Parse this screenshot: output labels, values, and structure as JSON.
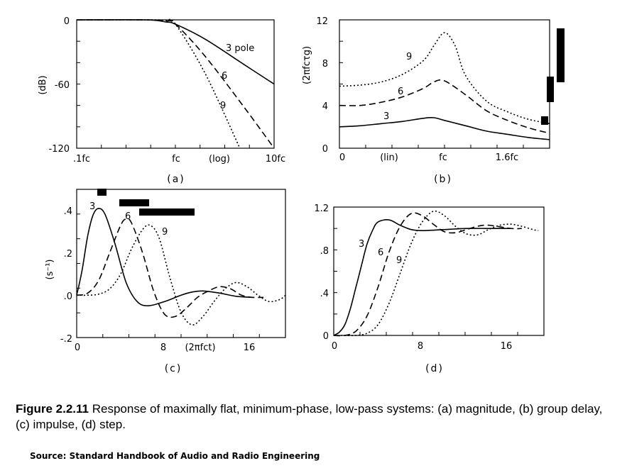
{
  "caption": {
    "number": "Figure 2.2.11",
    "text": " Response of maximally flat, minimum-phase, low-pass systems: (a) magnitude, (b) group delay, (c) impulse, (d) step."
  },
  "source": "Source: Standard Handbook of Audio and Radio Engineering",
  "chart_data": [
    {
      "type": "line",
      "panel_label": "(a)",
      "ylabel": "(dB)",
      "xscale": "log",
      "xlim": [
        0.1,
        10
      ],
      "ylim": [
        -120,
        0
      ],
      "x_tick_labels": [
        ".1fc",
        "fc",
        "(log)",
        "10fc"
      ],
      "y_tick_labels": [
        "0",
        "-60",
        "-120"
      ],
      "series": [
        {
          "name": "3 pole",
          "style": "solid",
          "x": [
            0.1,
            0.5,
            0.8,
            1.0,
            2.0,
            5.0,
            10.0
          ],
          "y": [
            0,
            0,
            -2,
            -4,
            -18,
            -42,
            -60
          ]
        },
        {
          "name": "6",
          "style": "dashed",
          "x": [
            0.1,
            0.5,
            0.8,
            1.0,
            2.0,
            5.0,
            10.0
          ],
          "y": [
            0,
            0,
            -1,
            -4,
            -34,
            -82,
            -120
          ]
        },
        {
          "name": "9",
          "style": "dotted",
          "x": [
            0.1,
            0.5,
            0.8,
            1.0,
            2.0,
            4.5
          ],
          "y": [
            0,
            0,
            -0.5,
            -4,
            -50,
            -120
          ]
        }
      ]
    },
    {
      "type": "line",
      "panel_label": "(b)",
      "ylabel": "(2πfcτg)",
      "xlim": [
        0,
        2
      ],
      "ylim": [
        0,
        12
      ],
      "x_tick_labels": [
        "0",
        "(lin)",
        "fc",
        "1.6fc"
      ],
      "y_tick_labels": [
        "12",
        "8",
        "4",
        "0"
      ],
      "series": [
        {
          "name": "3",
          "style": "solid",
          "x": [
            0,
            0.2,
            0.4,
            0.6,
            0.8,
            0.9,
            1.0,
            1.2,
            1.4,
            1.6,
            1.8,
            2.0
          ],
          "y": [
            2.0,
            2.1,
            2.3,
            2.5,
            2.8,
            2.85,
            2.6,
            2.1,
            1.6,
            1.3,
            1.0,
            0.8
          ]
        },
        {
          "name": "6",
          "style": "dashed",
          "x": [
            0,
            0.2,
            0.4,
            0.6,
            0.8,
            0.9,
            1.0,
            1.2,
            1.4,
            1.6,
            1.8,
            2.0
          ],
          "y": [
            4.0,
            4.0,
            4.3,
            4.8,
            5.6,
            6.2,
            6.3,
            5.0,
            3.5,
            2.6,
            1.9,
            1.4
          ]
        },
        {
          "name": "9",
          "style": "dotted",
          "x": [
            0,
            0.2,
            0.4,
            0.6,
            0.8,
            0.9,
            1.0,
            1.1,
            1.2,
            1.4,
            1.6,
            1.8,
            2.0
          ],
          "y": [
            5.8,
            5.9,
            6.2,
            6.9,
            8.2,
            9.6,
            10.8,
            9.6,
            6.8,
            4.4,
            3.4,
            2.7,
            2.3
          ]
        }
      ]
    },
    {
      "type": "line",
      "panel_label": "(c)",
      "ylabel": "(s⁻¹)",
      "xlim": [
        0,
        19
      ],
      "ylim": [
        -0.2,
        0.5
      ],
      "x_tick_labels": [
        "0",
        "8",
        "(2πfct)",
        "16"
      ],
      "y_tick_labels": [
        ".4",
        ".2",
        ".0",
        "-.2"
      ],
      "series": [
        {
          "name": "3",
          "style": "solid",
          "x": [
            0,
            0.5,
            1.0,
            1.5,
            2.0,
            2.6,
            3.5,
            4.5,
            5.5,
            6.5,
            8.0,
            9.5,
            10.5,
            11.5,
            13.0,
            14.5,
            16.0
          ],
          "y": [
            0,
            0.12,
            0.28,
            0.38,
            0.41,
            0.38,
            0.24,
            0.06,
            -0.03,
            -0.05,
            -0.03,
            0.0,
            0.015,
            0.02,
            0.01,
            -0.005,
            -0.01
          ]
        },
        {
          "name": "6",
          "style": "dashed",
          "x": [
            0,
            1.0,
            2.0,
            3.0,
            4.0,
            4.5,
            5.0,
            6.0,
            7.0,
            8.0,
            9.0,
            10.0,
            11.0,
            12.0,
            13.0,
            14.0,
            15.0,
            16.0,
            17.0
          ],
          "y": [
            0,
            0.01,
            0.07,
            0.2,
            0.33,
            0.36,
            0.34,
            0.2,
            0.02,
            -0.09,
            -0.1,
            -0.06,
            -0.01,
            0.02,
            0.04,
            0.03,
            0.0,
            -0.01,
            -0.01
          ]
        },
        {
          "name": "9",
          "style": "dotted",
          "x": [
            0,
            1.0,
            2.0,
            3.0,
            4.0,
            5.0,
            6.0,
            6.7,
            7.5,
            8.5,
            9.5,
            10.5,
            11.5,
            12.5,
            13.5,
            14.5,
            15.5,
            16.5,
            17.5,
            18.5,
            19.0
          ],
          "y": [
            0,
            0.0,
            0.005,
            0.03,
            0.1,
            0.22,
            0.31,
            0.33,
            0.27,
            0.08,
            -0.08,
            -0.14,
            -0.1,
            -0.03,
            0.03,
            0.06,
            0.04,
            0.0,
            -0.03,
            -0.02,
            0.0
          ]
        }
      ]
    },
    {
      "type": "line",
      "panel_label": "(d)",
      "xlim": [
        0,
        19
      ],
      "ylim": [
        0,
        1.2
      ],
      "x_tick_labels": [
        "0",
        "8",
        "16"
      ],
      "y_tick_labels": [
        "1.2",
        ".8",
        ".4",
        "0"
      ],
      "series": [
        {
          "name": "3",
          "style": "solid",
          "x": [
            0,
            0.5,
            1.0,
            1.5,
            2.0,
            2.5,
            3.0,
            3.5,
            4.0,
            5.0,
            6.0,
            7.0,
            8.0,
            10.0,
            12.0,
            14.0,
            16.0
          ],
          "y": [
            0,
            0.03,
            0.1,
            0.25,
            0.45,
            0.65,
            0.85,
            0.98,
            1.06,
            1.08,
            1.03,
            0.99,
            0.98,
            0.99,
            1.0,
            1.0,
            1.0
          ]
        },
        {
          "name": "6",
          "style": "dashed",
          "x": [
            0,
            1.0,
            2.0,
            3.0,
            4.0,
            5.0,
            6.0,
            7.0,
            8.0,
            9.0,
            10.0,
            11.0,
            12.0,
            13.0,
            14.0,
            16.0,
            17.0
          ],
          "y": [
            0,
            0.0,
            0.04,
            0.18,
            0.45,
            0.78,
            1.02,
            1.14,
            1.12,
            1.04,
            0.97,
            0.96,
            0.99,
            1.02,
            1.03,
            1.0,
            1.0
          ]
        },
        {
          "name": "9",
          "style": "dotted",
          "x": [
            0,
            1.0,
            2.0,
            3.0,
            4.0,
            5.0,
            6.0,
            7.0,
            8.0,
            9.0,
            10.0,
            11.0,
            12.0,
            13.0,
            14.0,
            15.0,
            16.0,
            17.0,
            18.0,
            18.5
          ],
          "y": [
            0,
            0.0,
            0.0,
            0.02,
            0.1,
            0.3,
            0.58,
            0.86,
            1.06,
            1.16,
            1.12,
            1.02,
            0.95,
            0.94,
            0.99,
            1.03,
            1.04,
            1.02,
            0.99,
            0.98
          ]
        }
      ]
    }
  ]
}
